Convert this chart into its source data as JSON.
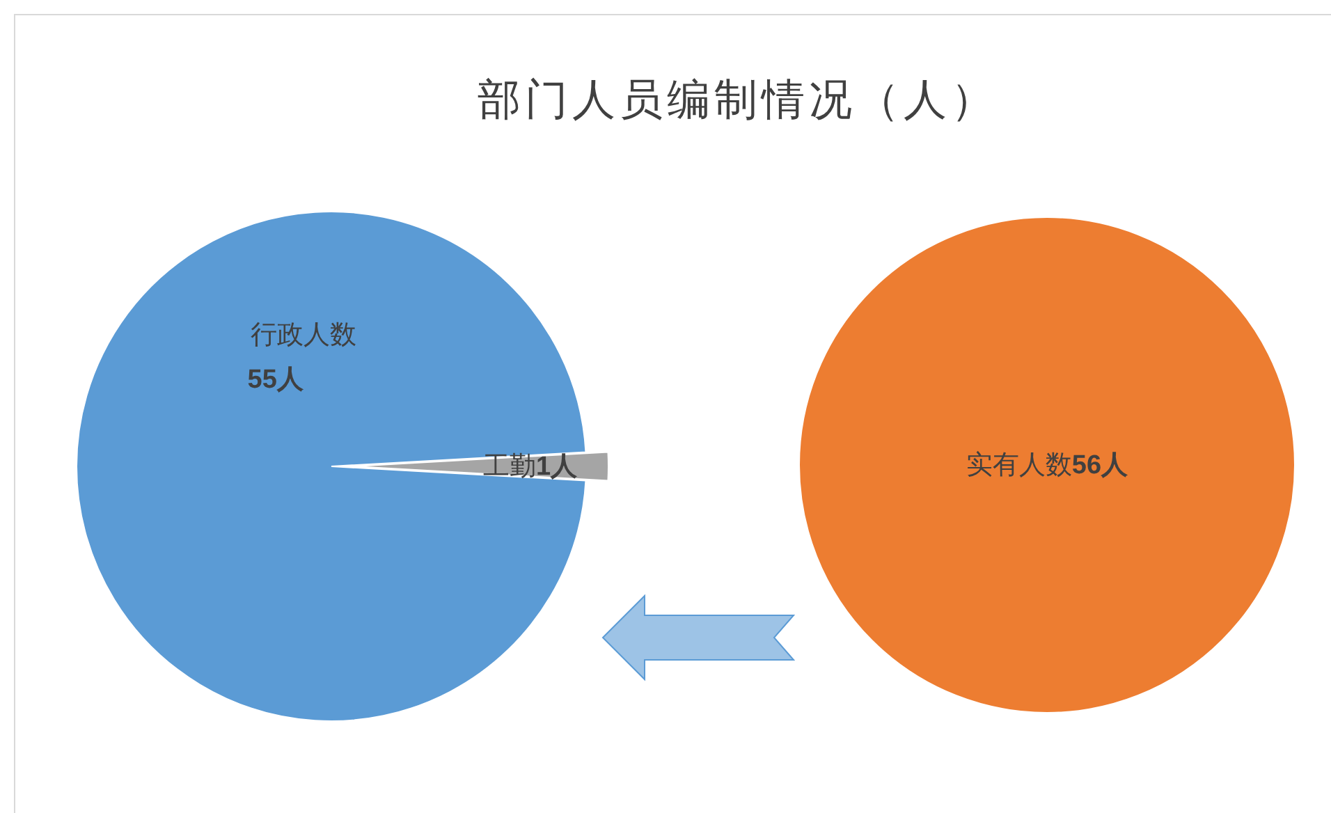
{
  "chart_data": [
    {
      "type": "pie",
      "title": "部门人员编制情况（人）",
      "categories": [
        "行政人数",
        "工勤"
      ],
      "values": [
        55,
        1
      ],
      "colors": [
        "#5b9bd5",
        "#a5a5a5"
      ],
      "value_labels": [
        "55人",
        "1人"
      ]
    },
    {
      "type": "pie",
      "categories": [
        "实有人数"
      ],
      "values": [
        56
      ],
      "colors": [
        "#ed7d31"
      ],
      "value_labels": [
        "56人"
      ]
    }
  ]
}
